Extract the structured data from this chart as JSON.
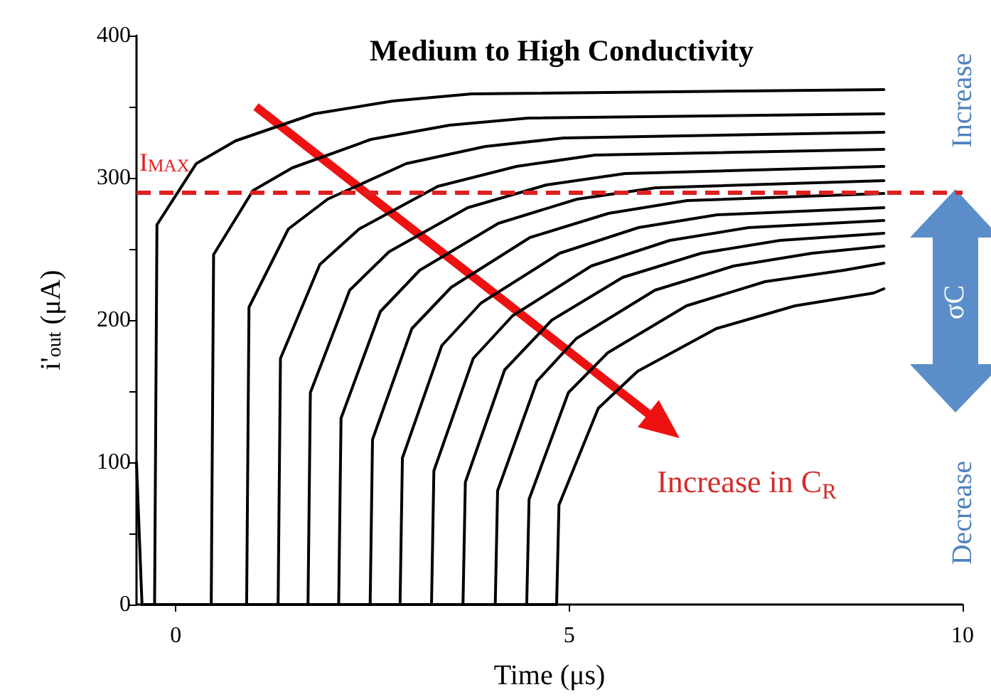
{
  "chart_data": {
    "type": "line",
    "title": "Medium to High Conductivity",
    "xlabel": "Time (μs)",
    "ylabel": "i'$_{out}$ (μA)",
    "xlim": [
      -0.5,
      10
    ],
    "xticks": [
      0,
      5,
      10
    ],
    "ylim": [
      0,
      400
    ],
    "yticks": [
      0,
      {
        "value": 50,
        "label": null
      },
      100,
      {
        "value": 150,
        "label": null
      },
      200,
      {
        "value": 250,
        "label": null
      },
      300,
      {
        "value": 350,
        "label": null
      },
      400
    ],
    "marker": "none",
    "line_style": "solid",
    "ref_lines": [
      {
        "axis": "y",
        "value": 290,
        "label": "I$_{MAX}$",
        "color": "#e02020",
        "line_style": "dashed"
      }
    ],
    "annotations": [
      "Increase in C$_{R}$",
      "Increase",
      "σC",
      "Decrease"
    ],
    "series": [
      {
        "color": "#000000",
        "x": [
          -0.5,
          -0.43,
          -0.27,
          -0.24,
          0.26,
          0.76,
          1.76,
          2.76,
          3.76,
          9.0
        ],
        "values": [
          100,
          0,
          0,
          267,
          310,
          326,
          345,
          354,
          359,
          362
        ]
      },
      {
        "color": "#000000",
        "x": [
          -0.43,
          0.45,
          0.48,
          0.98,
          1.48,
          2.48,
          3.48,
          4.48,
          9.0
        ],
        "values": [
          0,
          0,
          246,
          291,
          307,
          327,
          337,
          342,
          345
        ]
      },
      {
        "color": "#000000",
        "x": [
          -0.43,
          0.9,
          0.93,
          1.43,
          1.93,
          2.93,
          3.93,
          4.93,
          9.0
        ],
        "values": [
          0,
          0,
          209,
          264,
          285,
          310,
          322,
          328,
          332
        ]
      },
      {
        "color": "#000000",
        "x": [
          -0.43,
          1.3,
          1.33,
          1.83,
          2.33,
          3.33,
          4.33,
          5.33,
          9.0
        ],
        "values": [
          0,
          0,
          173,
          239,
          264,
          294,
          308,
          316,
          320
        ]
      },
      {
        "color": "#000000",
        "x": [
          -0.43,
          1.68,
          1.71,
          2.21,
          2.71,
          3.71,
          4.71,
          5.71,
          9.0
        ],
        "values": [
          0,
          0,
          149,
          221,
          248,
          279,
          295,
          303,
          308
        ]
      },
      {
        "color": "#000000",
        "x": [
          -0.43,
          2.07,
          2.1,
          2.6,
          3.1,
          4.1,
          5.1,
          6.1,
          9.0
        ],
        "values": [
          0,
          0,
          131,
          206,
          235,
          268,
          285,
          293,
          298
        ]
      },
      {
        "color": "#000000",
        "x": [
          -0.43,
          2.47,
          2.5,
          3.0,
          3.5,
          4.5,
          5.5,
          6.5,
          9.0
        ],
        "values": [
          0,
          0,
          116,
          194,
          223,
          258,
          275,
          284,
          289
        ]
      },
      {
        "color": "#000000",
        "x": [
          -0.43,
          2.85,
          2.88,
          3.38,
          3.88,
          4.88,
          5.88,
          6.88,
          9.0
        ],
        "values": [
          0,
          0,
          103,
          182,
          212,
          247,
          265,
          274,
          279
        ]
      },
      {
        "color": "#000000",
        "x": [
          -0.43,
          3.25,
          3.28,
          3.78,
          4.28,
          5.28,
          6.28,
          7.28,
          9.0
        ],
        "values": [
          0,
          0,
          94,
          173,
          203,
          238,
          256,
          265,
          270
        ]
      },
      {
        "color": "#000000",
        "x": [
          -0.43,
          3.65,
          3.68,
          4.18,
          4.78,
          5.68,
          6.68,
          7.68,
          9.0
        ],
        "values": [
          0,
          0,
          86,
          165,
          200,
          230,
          247,
          256,
          261
        ]
      },
      {
        "color": "#000000",
        "x": [
          -0.43,
          4.06,
          4.09,
          4.59,
          5.09,
          6.09,
          7.09,
          8.09,
          9.0
        ],
        "values": [
          0,
          0,
          80,
          157,
          187,
          221,
          238,
          247,
          252
        ]
      },
      {
        "color": "#000000",
        "x": [
          -0.43,
          4.46,
          4.49,
          4.99,
          5.49,
          6.49,
          7.49,
          8.49,
          9.0
        ],
        "values": [
          0,
          0,
          74,
          149,
          177,
          210,
          227,
          235,
          240
        ]
      },
      {
        "color": "#000000",
        "x": [
          -0.43,
          4.84,
          4.87,
          5.37,
          5.87,
          6.87,
          7.87,
          8.87,
          9.0
        ],
        "values": [
          0,
          0,
          70,
          138,
          164,
          194,
          210,
          219,
          222
        ]
      }
    ]
  }
}
